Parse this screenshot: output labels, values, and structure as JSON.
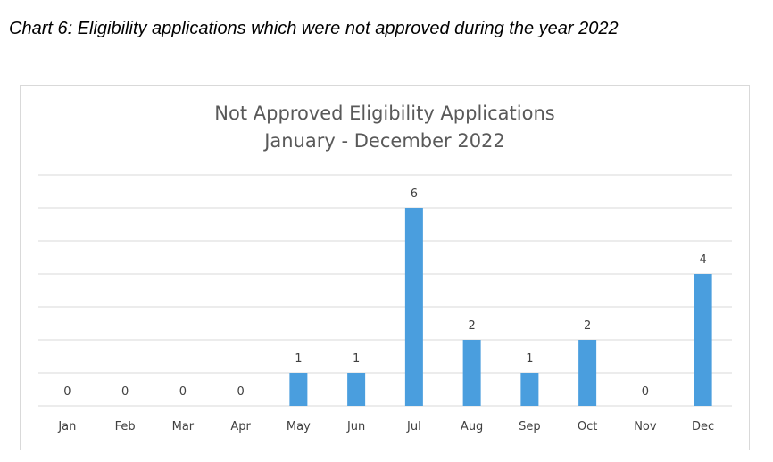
{
  "caption": "Chart 6: Eligibility applications which were not approved during the year 2022",
  "chart_data": {
    "type": "bar",
    "title": "Not Approved Eligibility Applications",
    "subtitle": "January - December 2022",
    "categories": [
      "Jan",
      "Feb",
      "Mar",
      "Apr",
      "May",
      "Jun",
      "Jul",
      "Aug",
      "Sep",
      "Oct",
      "Nov",
      "Dec"
    ],
    "values": [
      0,
      0,
      0,
      0,
      1,
      1,
      6,
      2,
      1,
      2,
      0,
      4
    ],
    "ylim": [
      0,
      7
    ],
    "grid": true,
    "data_labels": true,
    "bar_color": "#4a9ede",
    "grid_color": "#d9d9d9"
  }
}
